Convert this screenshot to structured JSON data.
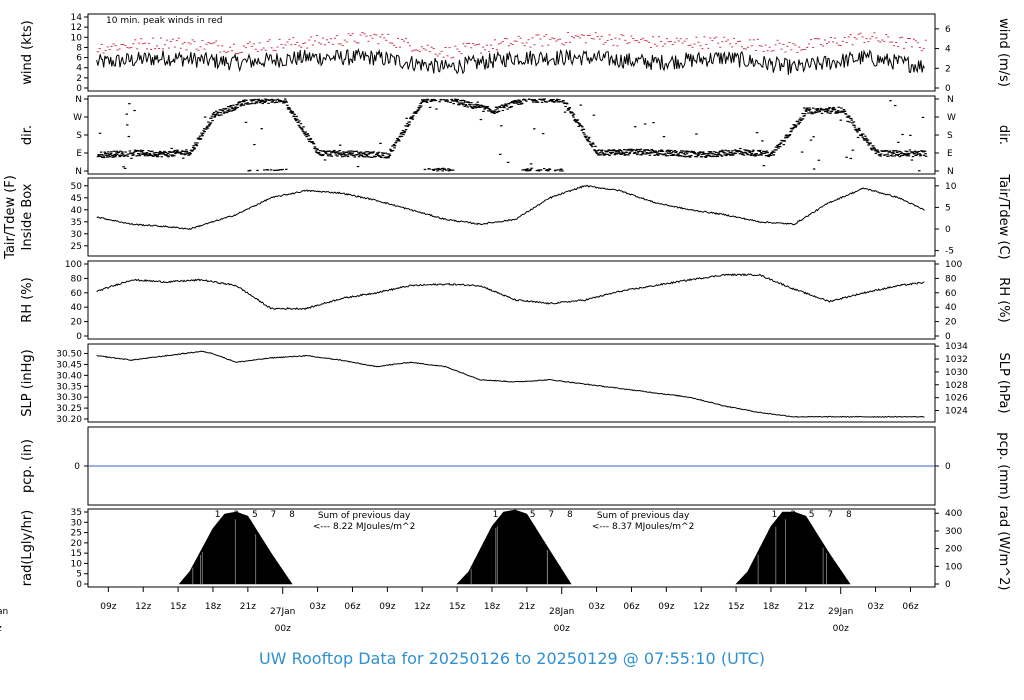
{
  "footer_title": "UW Rooftop Data for 20250126  to  20250129 @ 07:55:10  (UTC)",
  "x_axis": {
    "hour_labels": [
      "09z",
      "12z",
      "15z",
      "18z",
      "21z",
      "03z",
      "06z",
      "09z",
      "12z",
      "15z",
      "18z",
      "21z",
      "03z",
      "06z",
      "09z",
      "12z",
      "15z",
      "18z",
      "21z",
      "03z",
      "06z"
    ],
    "day_labels": [
      {
        "date": "27Jan",
        "hour": "00z"
      },
      {
        "date": "28Jan",
        "hour": "00z"
      },
      {
        "date": "29Jan",
        "hour": "00z"
      }
    ],
    "left_cut_labels": {
      "date": "an",
      "hour": "z"
    },
    "start": "2025-01-26T07:55Z",
    "end": "2025-01-29T07:55Z"
  },
  "colors": {
    "day_label": "#d03050",
    "peak_wind": "#d03050",
    "annotation": "#a030e0",
    "precip_line": "#3060d0",
    "footer": "#3090d0"
  },
  "chart_data": [
    {
      "type": "line",
      "panel": "wind",
      "ylabel_left": "wind (kts)",
      "ylabel_right": "wind (m/s)",
      "annotation": "10 min. peak winds in red",
      "left_ticks": [
        0,
        2,
        4,
        6,
        8,
        10,
        12,
        14
      ],
      "right_ticks": [
        0,
        2,
        4,
        6
      ],
      "ylim": [
        0,
        14
      ],
      "series": [
        {
          "name": "wind speed",
          "x_hours": [
            0,
            6,
            12,
            18,
            24,
            30,
            36,
            42,
            48,
            54,
            60,
            66,
            72
          ],
          "values": [
            5,
            6,
            5,
            6,
            6,
            4,
            6,
            6,
            5,
            6,
            4,
            6,
            4
          ]
        },
        {
          "name": "10 min. peak winds",
          "x_hours": [
            0,
            6,
            12,
            18,
            24,
            30,
            36,
            42,
            48,
            54,
            60,
            66,
            72
          ],
          "values": [
            8,
            9,
            8,
            9,
            10,
            7,
            9,
            10,
            9,
            9,
            8,
            10,
            8
          ]
        }
      ]
    },
    {
      "type": "scatter",
      "panel": "direction",
      "ylabel_left": "dir.",
      "ylabel_right": "dir.",
      "left_ticks": [
        "N",
        "E",
        "S",
        "W",
        "N"
      ],
      "right_ticks": [
        "N",
        "E",
        "S",
        "W",
        "N"
      ],
      "ylim": [
        0,
        360
      ],
      "series": [
        {
          "name": "wind direction",
          "x_hours": [
            0,
            3,
            6,
            8,
            10,
            13,
            16,
            19,
            22,
            25,
            28,
            30,
            34,
            37,
            40,
            43,
            46,
            49,
            52,
            55,
            58,
            61,
            64,
            67,
            70,
            72
          ],
          "values": [
            80,
            90,
            85,
            95,
            280,
            350,
            355,
            90,
            85,
            80,
            355,
            360,
            300,
            360,
            355,
            90,
            95,
            90,
            80,
            95,
            85,
            300,
            305,
            90,
            85,
            90
          ]
        }
      ]
    },
    {
      "type": "line",
      "panel": "temperature",
      "ylabel_left": "Tair/Tdew (F)",
      "ylabel_left2": "Inside Box",
      "ylabel_right": "Tair/Tdew (C)",
      "left_ticks": [
        25,
        30,
        35,
        40,
        45,
        50
      ],
      "right_ticks": [
        -5,
        0,
        5,
        10
      ],
      "ylim": [
        22,
        52
      ],
      "series": [
        {
          "name": "temperature",
          "x_hours": [
            0,
            3,
            6,
            8,
            12,
            15,
            18,
            21,
            24,
            27,
            30,
            33,
            36,
            39,
            42,
            45,
            48,
            51,
            54,
            57,
            60,
            63,
            66,
            69,
            72
          ],
          "values": [
            37,
            34,
            33,
            32,
            38,
            45,
            48,
            47,
            44,
            40,
            36,
            34,
            36,
            45,
            50,
            48,
            43,
            40,
            38,
            35,
            34,
            43,
            49,
            45,
            38
          ]
        }
      ]
    },
    {
      "type": "line",
      "panel": "humidity",
      "ylabel_left": "RH (%)",
      "ylabel_right": "RH (%)",
      "left_ticks": [
        0,
        20,
        40,
        60,
        80,
        100
      ],
      "right_ticks": [
        0,
        20,
        40,
        60,
        80,
        100
      ],
      "ylim": [
        0,
        100
      ],
      "series": [
        {
          "name": "relative humidity",
          "x_hours": [
            0,
            3,
            6,
            9,
            12,
            15,
            18,
            21,
            24,
            27,
            30,
            33,
            36,
            39,
            42,
            45,
            48,
            51,
            54,
            57,
            60,
            63,
            66,
            69,
            72
          ],
          "values": [
            62,
            78,
            75,
            78,
            70,
            38,
            38,
            52,
            60,
            70,
            72,
            70,
            50,
            45,
            50,
            62,
            70,
            78,
            85,
            85,
            65,
            48,
            60,
            70,
            76
          ]
        }
      ]
    },
    {
      "type": "line",
      "panel": "pressure",
      "ylabel_left": "SLP (inHg)",
      "ylabel_right": "SLP (hPa)",
      "left_ticks": [
        30.2,
        30.25,
        30.3,
        30.35,
        30.4,
        30.45,
        30.5
      ],
      "left_tick_labels": [
        "30.20",
        "30.25",
        "30.30",
        "30.35",
        "30.40",
        "30.45",
        "30.50"
      ],
      "right_ticks": [
        1024,
        1026,
        1028,
        1030,
        1032,
        1034
      ],
      "ylim": [
        30.2,
        30.53
      ],
      "series": [
        {
          "name": "sea level pressure",
          "x_hours": [
            0,
            3,
            6,
            9,
            10,
            12,
            15,
            18,
            21,
            24,
            27,
            30,
            33,
            36,
            39,
            42,
            45,
            48,
            51,
            54,
            57,
            60,
            63,
            66,
            69,
            72
          ],
          "values": [
            30.49,
            30.47,
            30.49,
            30.51,
            30.5,
            30.46,
            30.48,
            30.49,
            30.47,
            30.44,
            30.46,
            30.44,
            30.38,
            30.37,
            30.38,
            30.36,
            30.34,
            30.32,
            30.3,
            30.26,
            30.23,
            30.21,
            30.21,
            30.21,
            30.21,
            30.21
          ]
        }
      ]
    },
    {
      "type": "line",
      "panel": "precipitation",
      "ylabel_left": "pcp. (in)",
      "ylabel_right": "pcp. (mm)",
      "left_ticks": [
        0
      ],
      "right_ticks": [
        0
      ],
      "series": [
        {
          "name": "precipitation",
          "x_hours": [
            0,
            72
          ],
          "values": [
            0,
            0
          ]
        }
      ]
    },
    {
      "type": "area",
      "panel": "radiation",
      "ylabel_left": "rad(Lgly/hr)",
      "ylabel_right": "rad (W/m^2)",
      "left_ticks": [
        0,
        5,
        10,
        15,
        20,
        25,
        30,
        35
      ],
      "right_ticks": [
        0,
        100,
        200,
        300,
        400
      ],
      "ylim": [
        0,
        35
      ],
      "hour_marks": [
        "1",
        "3",
        "5",
        "7",
        "8"
      ],
      "annotations": [
        {
          "line1": "Sum of previous day",
          "line2": "<--- 8.22 MJoules/m^2"
        },
        {
          "line1": "Sum of previous day",
          "line2": "<--- 8.37 MJoules/m^2"
        }
      ],
      "series": [
        {
          "name": "day 1",
          "x_hours": [
            7.1,
            8,
            10,
            11,
            12,
            13,
            15,
            16.8
          ],
          "values": [
            0,
            6,
            27,
            34,
            35,
            33,
            15,
            0
          ]
        },
        {
          "name": "day 2",
          "x_hours": [
            31,
            32,
            34,
            35,
            36,
            37,
            39,
            40.8
          ],
          "values": [
            0,
            6,
            28,
            35,
            36,
            34,
            16,
            0
          ]
        },
        {
          "name": "day 3",
          "x_hours": [
            55,
            56,
            58,
            59,
            60,
            61,
            63,
            64.8
          ],
          "values": [
            0,
            6,
            28,
            35,
            35,
            33,
            15,
            0
          ]
        }
      ]
    }
  ]
}
